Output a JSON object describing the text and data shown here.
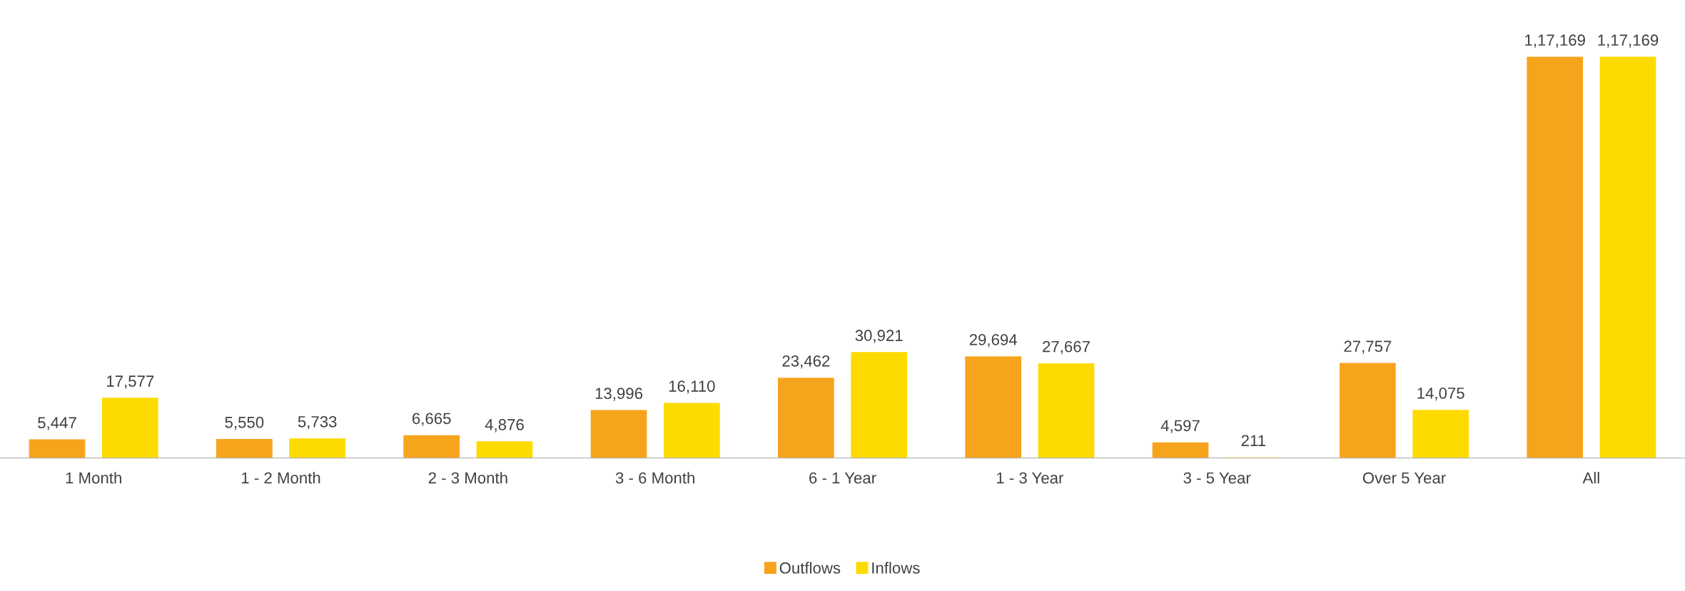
{
  "chart_data": {
    "type": "bar",
    "categories": [
      "1 Month",
      "1 - 2 Month",
      "2 - 3 Month",
      "3 - 6 Month",
      "6 - 1 Year",
      "1 - 3 Year",
      "3 - 5 Year",
      "Over 5 Year",
      "All"
    ],
    "series": [
      {
        "name": "Outflows",
        "color": "#f7a41d",
        "values": [
          5447,
          5550,
          6665,
          13996,
          23462,
          29694,
          4597,
          27757,
          117169
        ],
        "value_labels": [
          "5,447",
          "5,550",
          "6,665",
          "13,996",
          "23,462",
          "29,694",
          "4,597",
          "27,757",
          "1,17,169"
        ]
      },
      {
        "name": "Inflows",
        "color": "#fddb00",
        "values": [
          17577,
          5733,
          4876,
          16110,
          30921,
          27667,
          211,
          14075,
          117169
        ],
        "value_labels": [
          "17,577",
          "5,733",
          "4,876",
          "16,110",
          "30,921",
          "27,667",
          "211",
          "14,075",
          "1,17,169"
        ]
      }
    ],
    "tick_labels": "x",
    "grid": false,
    "legend": "bottom"
  }
}
